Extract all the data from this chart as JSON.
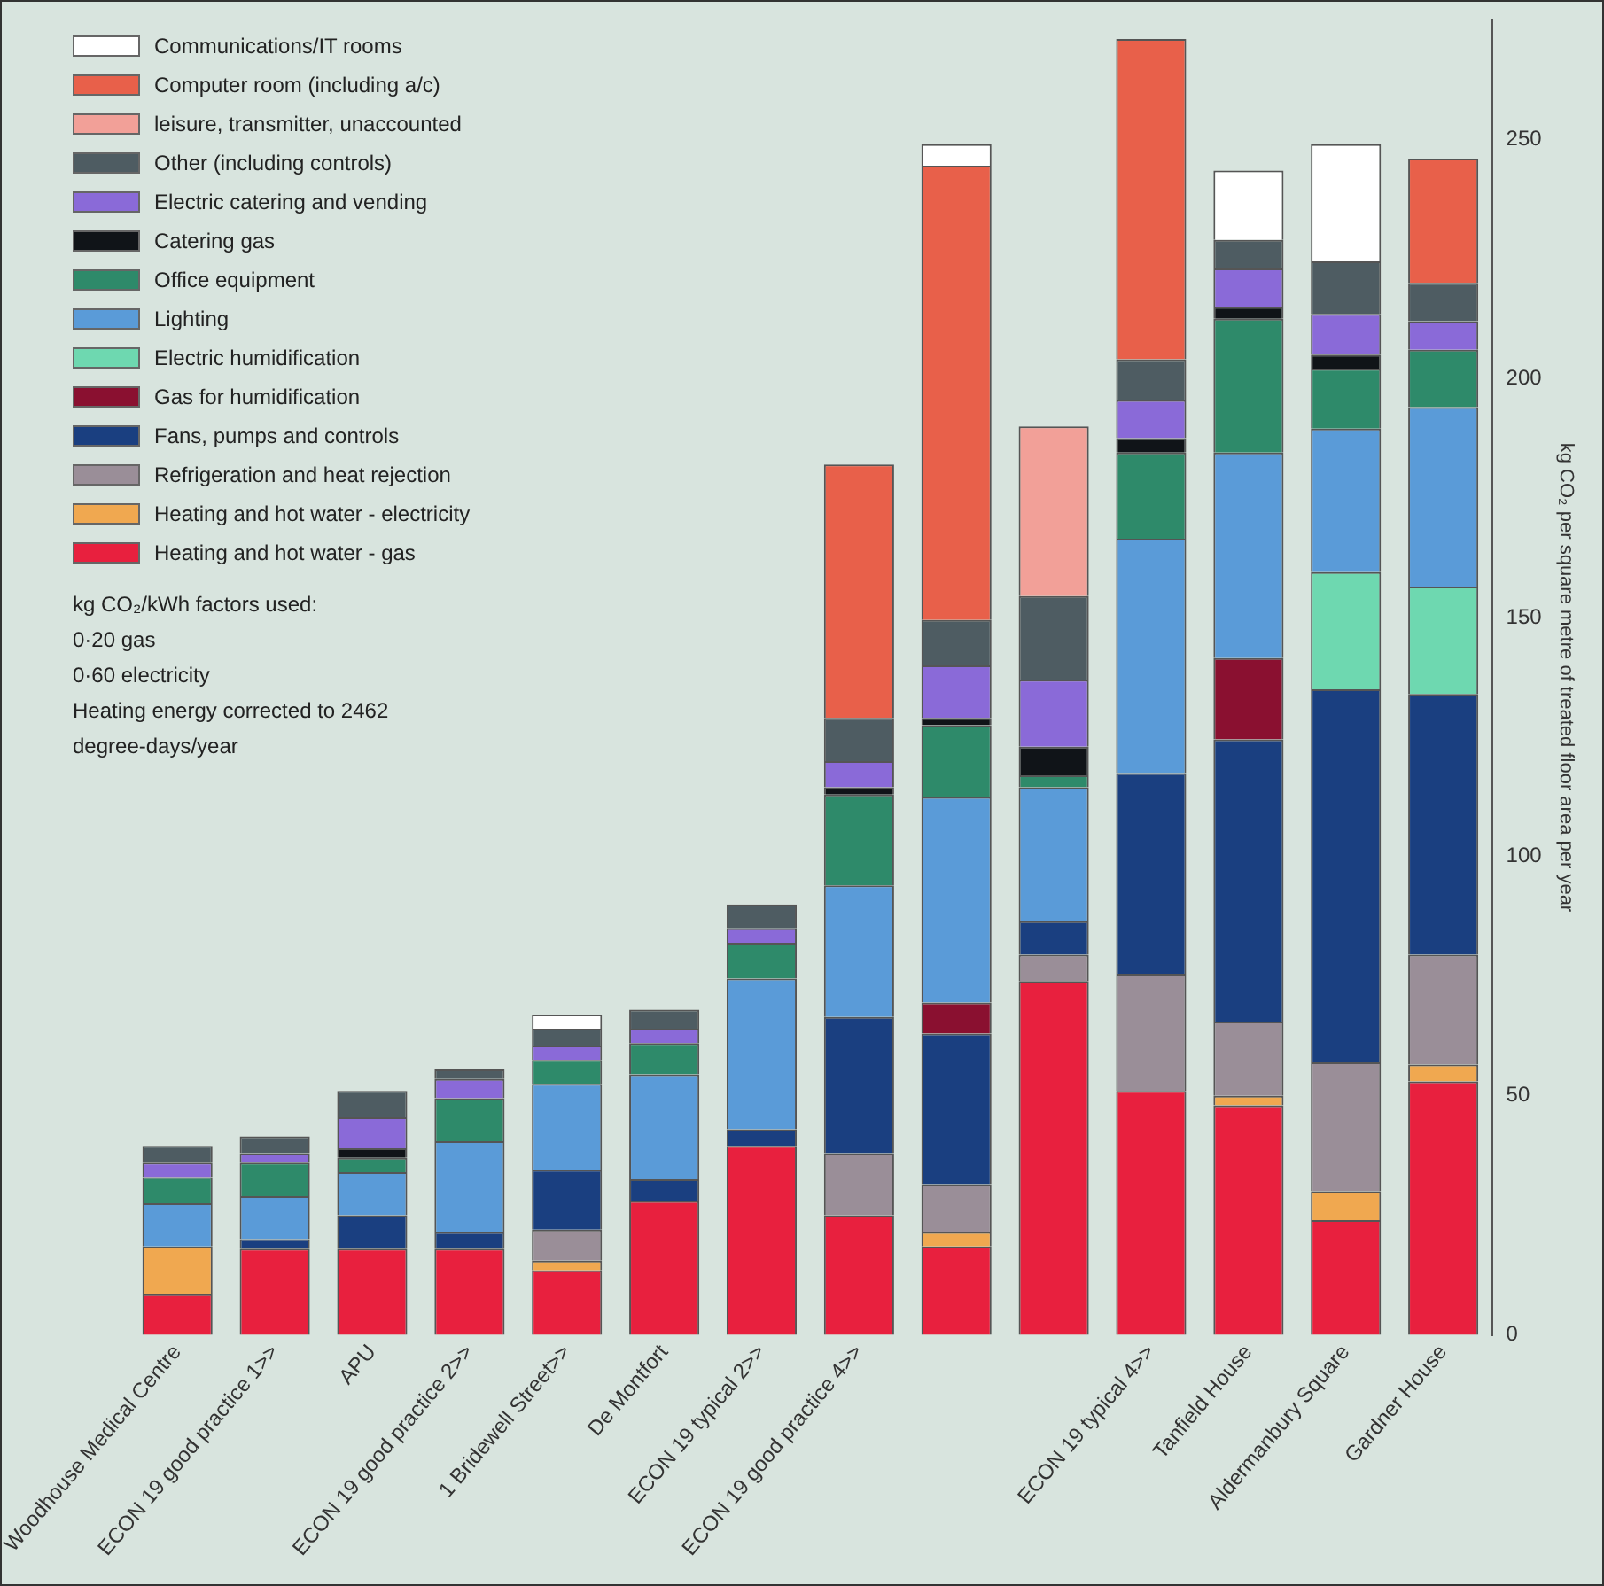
{
  "chart_data": {
    "type": "bar",
    "stacked": true,
    "legend": "top left",
    "grid": false,
    "ylabel": "kg CO₂ per square metre of treated floor area per year",
    "ylim": [
      0,
      275
    ],
    "yticks": [
      0,
      50,
      100,
      150,
      200,
      250
    ],
    "categories": [
      "Woodhouse Medical Centre",
      "ECON 19 good practice 1>>",
      "APU",
      "ECON 19 good practice 2>>",
      "1 Bridewell Street>>",
      "De Montfort",
      "ECON 19 typical 2>>",
      "ECON 19 good practice 4>>",
      null,
      null,
      "ECON 19 typical 4>>",
      "Tanfield House",
      "Aldermanbury Square",
      "Gardner House"
    ],
    "series": [
      {
        "name": "Heating and hot water - gas",
        "color": "#e8203e",
        "values": [
          8.5,
          18,
          18,
          18,
          13.5,
          28,
          39.5,
          25,
          18.5,
          74,
          51,
          48,
          24,
          53
        ]
      },
      {
        "name": "Heating and hot water - electricity",
        "color": "#f0a850",
        "values": [
          10,
          null,
          null,
          null,
          2,
          null,
          null,
          null,
          3,
          null,
          null,
          2,
          6,
          3.5
        ]
      },
      {
        "name": "Refrigeration and heat rejection",
        "color": "#9a8e98",
        "values": [
          null,
          null,
          null,
          null,
          6.5,
          null,
          null,
          13,
          10,
          5.5,
          24.5,
          15.5,
          27,
          23
        ]
      },
      {
        "name": "Fans, pumps and controls",
        "color": "#1a3f80",
        "values": [
          null,
          2,
          7,
          3.5,
          12.5,
          4.5,
          3.5,
          28.5,
          31.5,
          7,
          42,
          59,
          78,
          54.5
        ]
      },
      {
        "name": "Gas for humidification",
        "color": "#8a1030",
        "values": [
          null,
          null,
          null,
          null,
          null,
          null,
          null,
          null,
          6.5,
          null,
          null,
          17,
          null,
          null
        ]
      },
      {
        "name": "Electric humidification",
        "color": "#6ed8b0",
        "values": [
          null,
          null,
          null,
          null,
          null,
          null,
          null,
          null,
          null,
          null,
          null,
          null,
          24.5,
          22.5
        ]
      },
      {
        "name": "Lighting",
        "color": "#5a9bd8",
        "values": [
          9,
          9,
          9,
          19,
          18,
          22,
          31.5,
          27.5,
          43,
          28,
          49,
          43,
          30,
          37.5
        ]
      },
      {
        "name": "Office equipment",
        "color": "#2e8a6a",
        "values": [
          5.5,
          7,
          3,
          9,
          5,
          6.5,
          7.5,
          19,
          15,
          2.5,
          18,
          28,
          12.5,
          12
        ]
      },
      {
        "name": "Catering gas",
        "color": "#101418",
        "values": [
          null,
          null,
          2,
          null,
          null,
          null,
          null,
          1.5,
          1.5,
          6,
          3,
          2.5,
          3,
          null
        ]
      },
      {
        "name": "Electric catering and vending",
        "color": "#8a6ad8",
        "values": [
          3,
          2,
          6.5,
          4,
          3,
          3,
          3,
          5.5,
          11,
          14,
          8,
          8,
          8.5,
          6
        ]
      },
      {
        "name": "Other (including controls)",
        "color": "#4e5c62",
        "values": [
          3.5,
          3.5,
          5.5,
          2,
          3.5,
          4,
          5,
          9,
          9.5,
          17.5,
          8.5,
          6,
          11,
          8
        ]
      },
      {
        "name": "leisure, transmitter, unaccounted",
        "color": "#f2a098",
        "values": [
          null,
          null,
          null,
          null,
          null,
          null,
          null,
          null,
          null,
          35.5,
          null,
          null,
          null,
          null
        ]
      },
      {
        "name": "Computer room (including a/c)",
        "color": "#e8604a",
        "values": [
          null,
          null,
          null,
          null,
          null,
          null,
          null,
          53,
          95,
          null,
          67,
          null,
          null,
          26
        ]
      },
      {
        "name": "Communications/IT rooms",
        "color": "#ffffff",
        "values": [
          null,
          null,
          null,
          null,
          3,
          null,
          null,
          null,
          4.5,
          null,
          null,
          14.5,
          24.5,
          null
        ]
      }
    ],
    "annotations": [
      "kg CO₂/kWh factors used:",
      "0·20 gas",
      "0·60 electricity",
      "Heating energy corrected to 2462 degree-days/year"
    ]
  }
}
